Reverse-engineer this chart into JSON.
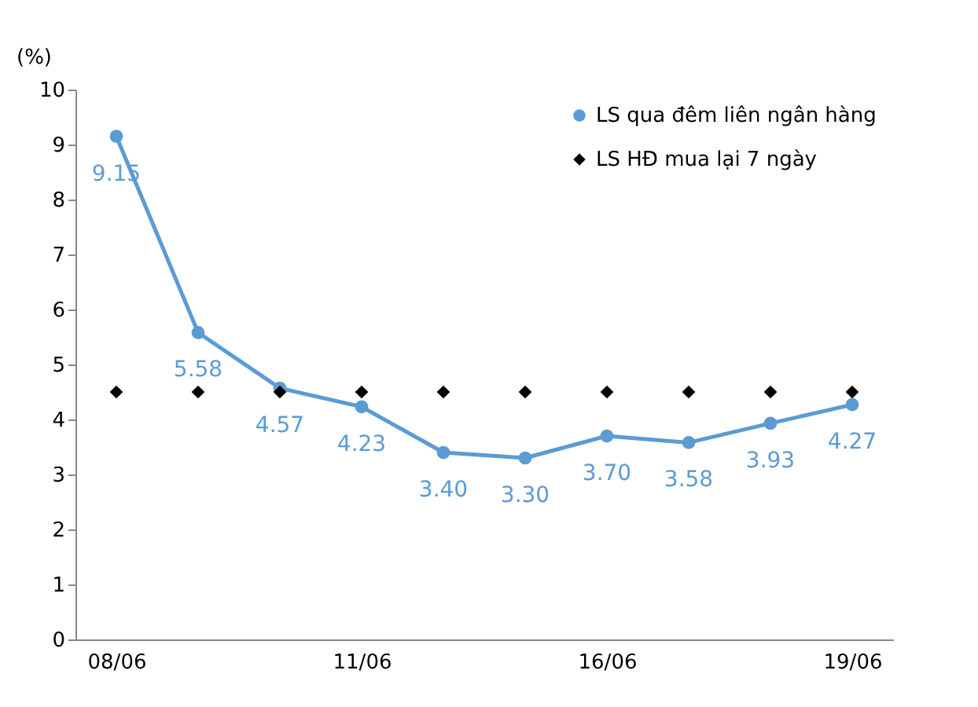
{
  "chart_data": {
    "type": "line",
    "ylabel": "(%)",
    "categories": [
      "08/06",
      null,
      null,
      "11/06",
      null,
      null,
      "16/06",
      null,
      null,
      "19/06"
    ],
    "series": [
      {
        "name": "LS qua đêm liên ngân hàng",
        "marker": "circle",
        "color": "#5b9bd5",
        "values": [
          9.15,
          5.58,
          4.57,
          4.23,
          3.4,
          3.3,
          3.7,
          3.58,
          3.93,
          4.27
        ],
        "value_labels": [
          "9.15",
          "5.58",
          "4.57",
          "4.23",
          "3.40",
          "3.30",
          "3.70",
          "3.58",
          "3.93",
          "4.27"
        ]
      },
      {
        "name": "LS HĐ mua lại 7 ngày",
        "type": "scatter",
        "marker": "diamond",
        "color": "#000000",
        "values": [
          4.5,
          4.5,
          4.5,
          4.5,
          4.5,
          4.5,
          4.5,
          4.5,
          4.5,
          4.5
        ]
      }
    ],
    "ylim": [
      0,
      10
    ],
    "yticks": [
      0,
      1,
      2,
      3,
      4,
      5,
      6,
      7,
      8,
      9,
      10
    ],
    "grid": false,
    "legend": "top right"
  }
}
